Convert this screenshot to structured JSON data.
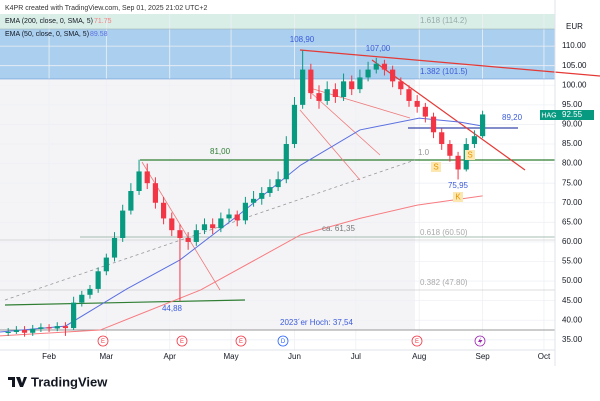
{
  "header": "K4PR created with TradingView.com, Sep 01, 2025 21:02 UTC+2",
  "footer": "TradingView",
  "chart_data": {
    "type": "candlestick",
    "currency": "EUR",
    "symbol": "HAG",
    "up_color": "#089981",
    "down_color": "#f23645",
    "x": [
      12,
      16,
      20,
      24,
      28,
      32,
      36,
      40,
      44,
      48,
      52,
      56,
      60,
      64,
      68,
      72,
      76,
      80,
      84,
      88,
      92,
      96,
      100,
      104,
      108,
      112,
      116,
      120,
      124,
      128,
      132,
      136,
      140,
      144,
      148,
      152,
      156,
      160,
      164,
      168,
      172,
      176,
      180,
      184,
      188,
      192,
      196,
      200,
      204,
      208,
      212,
      216,
      220,
      224,
      228,
      232,
      236,
      240,
      244
    ],
    "open": [
      36.8,
      37.0,
      37.5,
      36.8,
      37.8,
      38.2,
      37.9,
      38.5,
      38.0,
      44.5,
      46.5,
      48.0,
      52.5,
      56.0,
      61.0,
      68.0,
      73.0,
      78.0,
      75.0,
      70.0,
      66.0,
      63.0,
      61.0,
      60.0,
      63.0,
      64.5,
      63.5,
      66.0,
      67.0,
      65.5,
      70.0,
      71.0,
      72.5,
      74.0,
      76.0,
      85.0,
      95.0,
      104.0,
      98.0,
      96.0,
      99.0,
      97.0,
      101.0,
      99.0,
      102.0,
      104.0,
      105.5,
      104.0,
      101.0,
      99.0,
      96.0,
      94.5,
      92.0,
      88.0,
      85.0,
      82.0,
      78.5,
      85.0,
      87.0
    ],
    "high": [
      38.0,
      38.5,
      38.5,
      38.8,
      39.2,
      39.0,
      39.5,
      39.5,
      46.0,
      47.5,
      49.0,
      53.5,
      57.0,
      62.5,
      69.5,
      75.0,
      81.0,
      80.0,
      76.5,
      71.5,
      67.5,
      64.5,
      62.5,
      64.5,
      66.0,
      66.0,
      67.5,
      68.5,
      68.0,
      71.5,
      73.0,
      74.0,
      76.0,
      78.0,
      87.0,
      97.0,
      108.9,
      105.5,
      100.0,
      101.0,
      100.5,
      103.0,
      102.5,
      104.0,
      106.0,
      107.0,
      106.5,
      105.0,
      102.0,
      100.0,
      97.5,
      95.5,
      93.0,
      89.0,
      86.0,
      83.0,
      86.5,
      88.5,
      93.5
    ],
    "low": [
      36.0,
      36.5,
      35.8,
      36.0,
      37.0,
      37.0,
      37.2,
      36.0,
      37.5,
      43.5,
      45.5,
      47.0,
      51.5,
      55.0,
      60.0,
      67.0,
      72.0,
      73.5,
      68.5,
      64.5,
      61.5,
      44.88,
      58.0,
      59.0,
      62.0,
      62.0,
      62.5,
      65.0,
      64.0,
      64.5,
      69.0,
      69.5,
      71.5,
      73.0,
      75.0,
      84.0,
      94.0,
      96.5,
      94.0,
      95.0,
      95.5,
      96.0,
      97.5,
      98.0,
      101.0,
      103.0,
      102.5,
      99.5,
      97.5,
      94.5,
      93.0,
      90.5,
      86.5,
      83.5,
      80.5,
      75.95,
      78.0,
      84.0,
      86.5
    ],
    "close": [
      37.0,
      37.5,
      36.8,
      37.8,
      38.2,
      37.9,
      38.5,
      38.0,
      44.5,
      46.5,
      48.0,
      52.5,
      56.0,
      61.0,
      68.0,
      73.0,
      78.0,
      75.0,
      70.0,
      66.0,
      63.0,
      61.0,
      60.0,
      63.0,
      64.5,
      63.5,
      66.0,
      67.0,
      65.5,
      70.0,
      71.0,
      72.5,
      74.0,
      76.0,
      85.0,
      95.0,
      104.0,
      98.0,
      96.0,
      99.0,
      97.0,
      101.0,
      99.0,
      102.0,
      104.0,
      105.5,
      104.0,
      101.0,
      99.0,
      96.0,
      94.5,
      92.0,
      88.0,
      85.0,
      82.0,
      78.5,
      85.0,
      87.0,
      92.55
    ],
    "indicators": [
      {
        "name": "EMA (200, close, 0, SMA, 5)",
        "color": "#f77c80",
        "x": [
          8,
          57,
          106,
          155,
          184,
          212,
          244
        ],
        "values": [
          36,
          37.5,
          47.7,
          61.8,
          66,
          69.4,
          71.75
        ]
      },
      {
        "name": "EMA (50, close, 0, SMA, 5)",
        "color": "#5b6fe0",
        "x": [
          8,
          40,
          70,
          96,
          125,
          155,
          184,
          213,
          233,
          244
        ],
        "values": [
          37,
          38.5,
          48,
          55.4,
          67,
          79.6,
          88.6,
          91.6,
          90.6,
          89.58
        ]
      }
    ],
    "xlim": [
      8,
      279.4
    ],
    "ylim": [
      32.4,
      118.2
    ],
    "xticks": [
      {
        "value": 32,
        "label": "Feb"
      },
      {
        "value": 60,
        "label": "Mar"
      },
      {
        "value": 91,
        "label": "Apr"
      },
      {
        "value": 121,
        "label": "May"
      },
      {
        "value": 152,
        "label": "Jun"
      },
      {
        "value": 182,
        "label": "Jul"
      },
      {
        "value": 213,
        "label": "Aug"
      },
      {
        "value": 244,
        "label": "Sep"
      },
      {
        "value": 274,
        "label": "Oct"
      }
    ],
    "yticks": [
      {
        "value": 35,
        "label": "35.00"
      },
      {
        "value": 40,
        "label": "40.00"
      },
      {
        "value": 45,
        "label": "45.00"
      },
      {
        "value": 50,
        "label": "50.00"
      },
      {
        "value": 55,
        "label": "55.00"
      },
      {
        "value": 60,
        "label": "60.00"
      },
      {
        "value": 65,
        "label": "65.00"
      },
      {
        "value": 70,
        "label": "70.00"
      },
      {
        "value": 75,
        "label": "75.00"
      },
      {
        "value": 80,
        "label": "80.00"
      },
      {
        "value": 85,
        "label": "85.00"
      },
      {
        "value": 90,
        "label": "90.00"
      },
      {
        "value": 95,
        "label": "95.00"
      },
      {
        "value": 100,
        "label": "100.00"
      },
      {
        "value": 105,
        "label": "105.00"
      },
      {
        "value": 110,
        "label": "110.00"
      }
    ],
    "grid": true,
    "annotations": [
      "108,90",
      "107,00",
      "1.618 (114.2)",
      "1.382 (101.5)",
      "89,20",
      "81,00",
      "1.0",
      "75,95",
      "ca. 61,35",
      "0.618 (60.50)",
      "0.382 (47.80)",
      "44,88",
      "2023´er Hoch: 37,54",
      "S",
      "S",
      "K"
    ],
    "events": [
      "E",
      "E",
      "E",
      "D",
      "E"
    ]
  }
}
